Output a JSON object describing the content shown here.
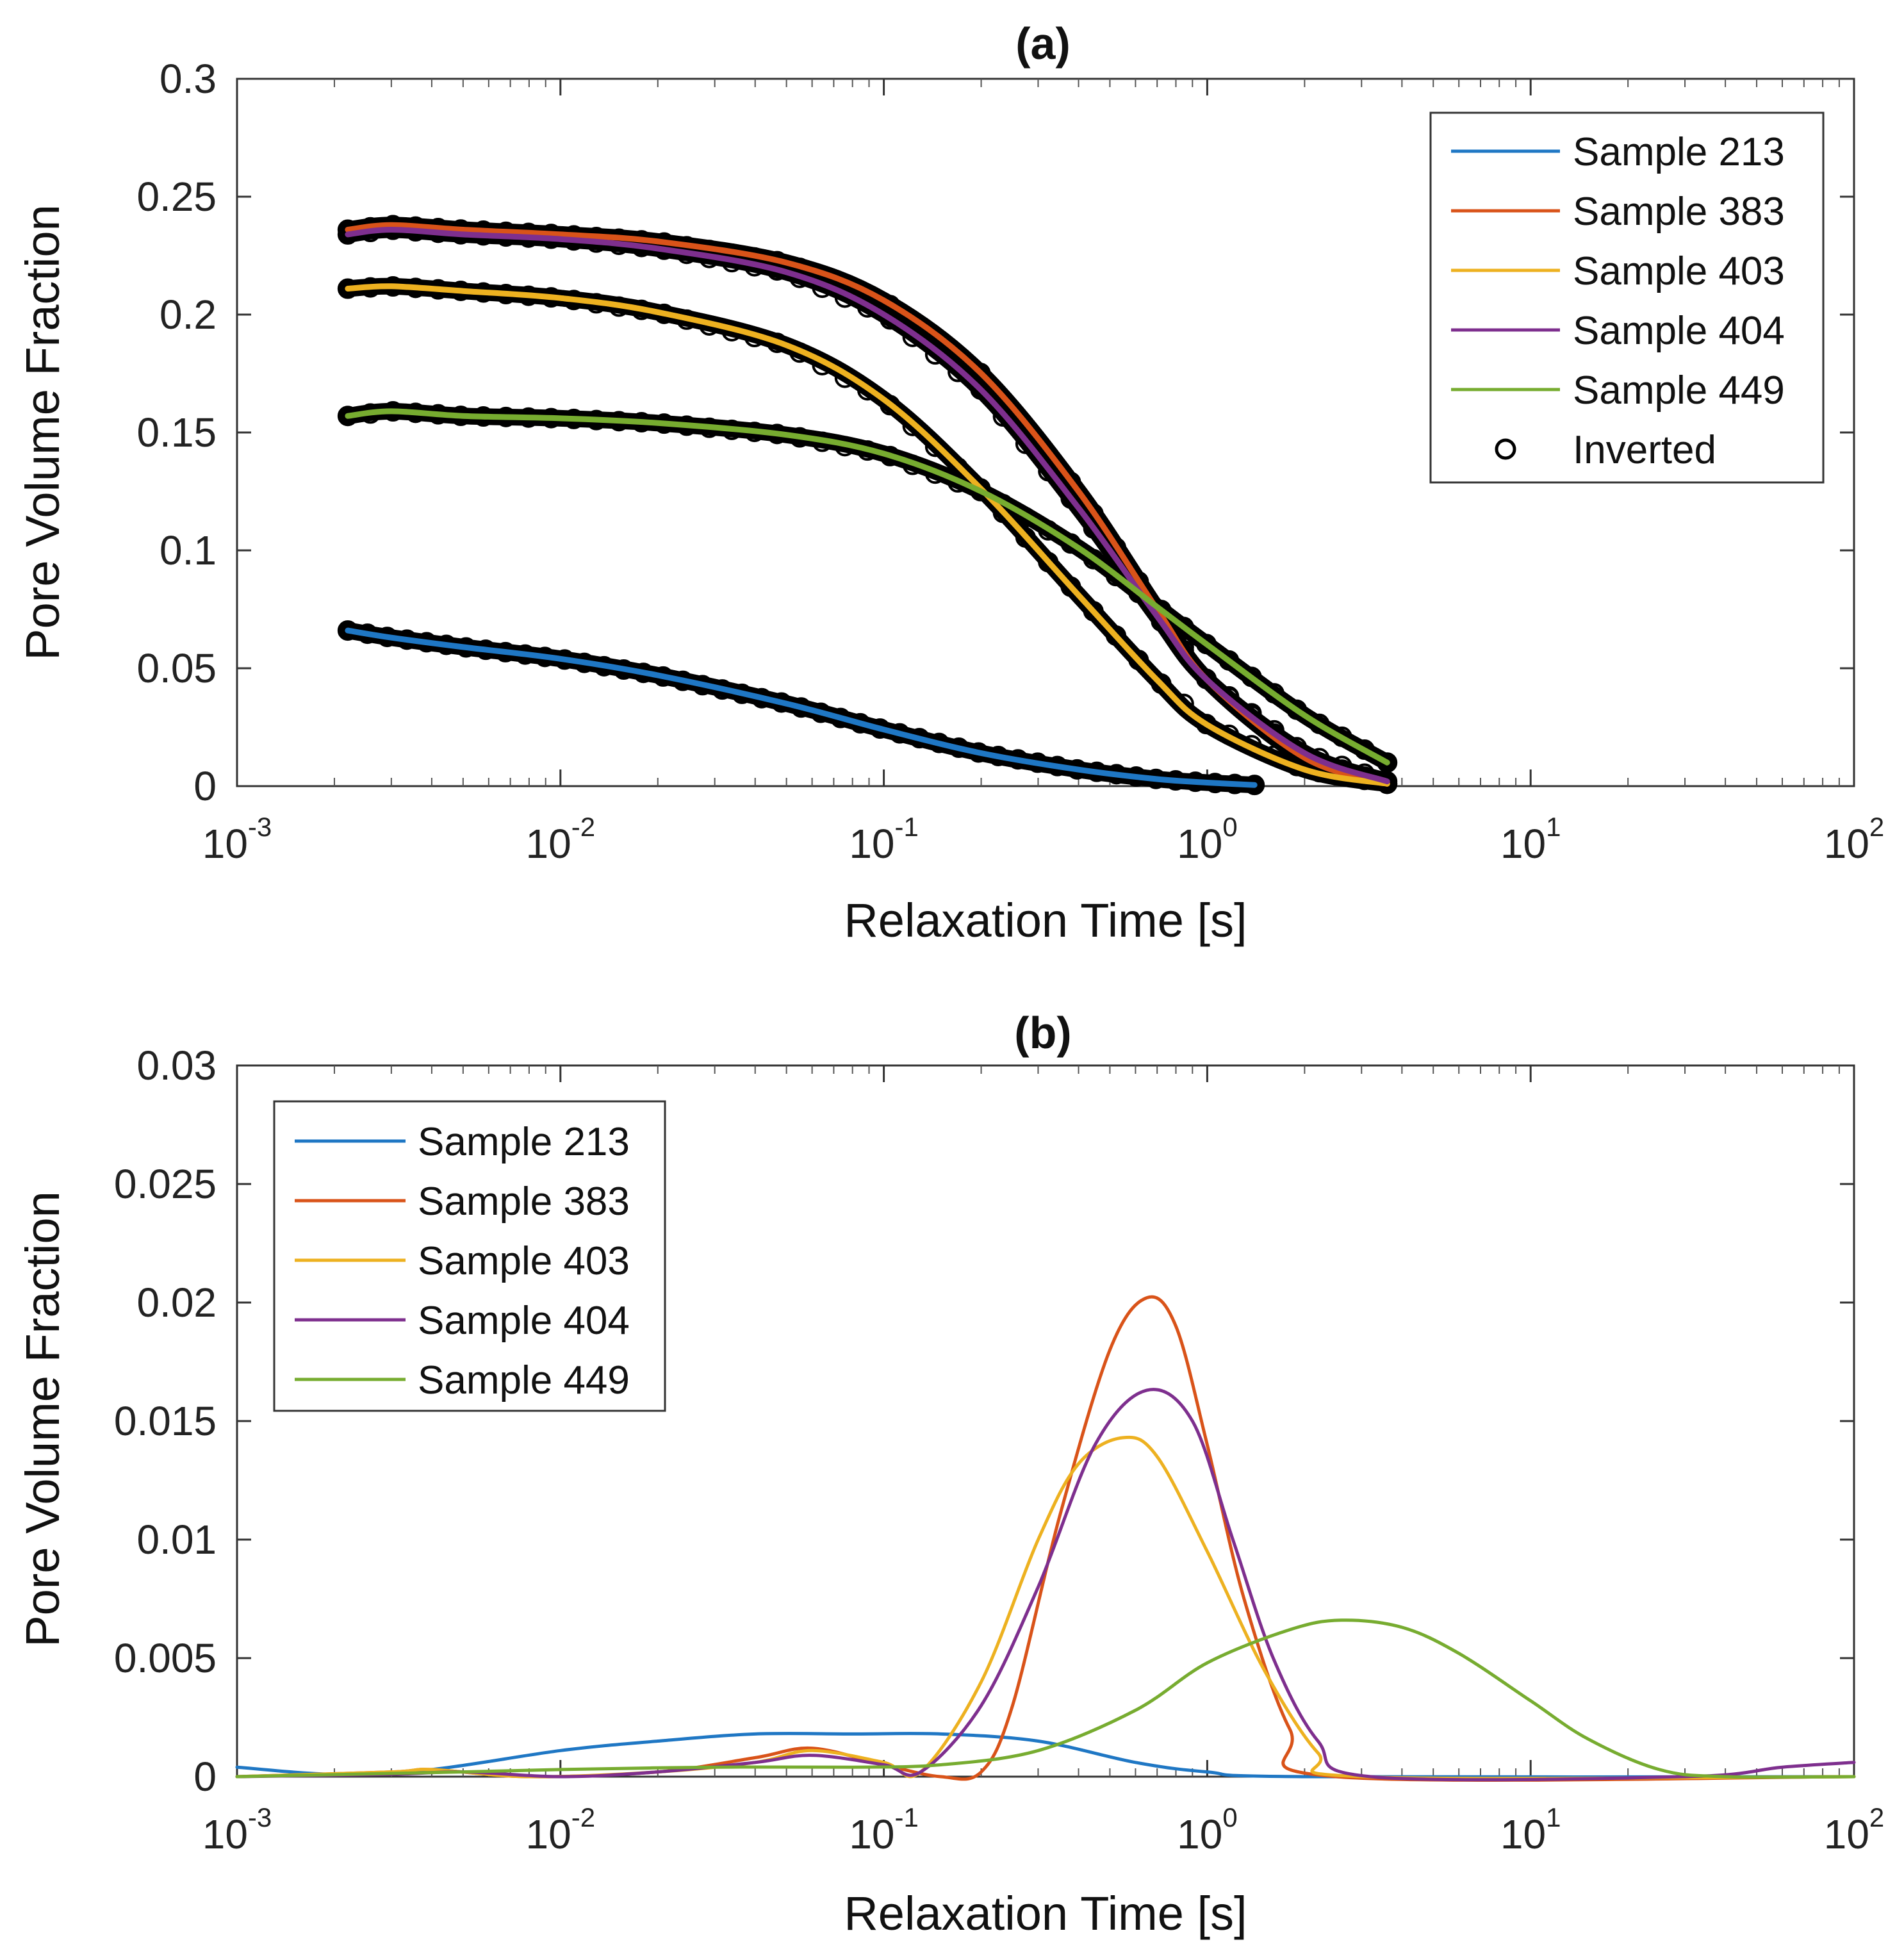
{
  "chart_data": [
    {
      "type": "line",
      "panel": "a",
      "title": "(a)",
      "xlabel": "Relaxation Time [s]",
      "ylabel": "Pore Volume Fraction",
      "xscale": "log",
      "xlim": [
        0.001,
        100
      ],
      "ylim": [
        0,
        0.3
      ],
      "xticks": [
        {
          "base": "10",
          "exp": "-3"
        },
        {
          "base": "10",
          "exp": "-2"
        },
        {
          "base": "10",
          "exp": "-1"
        },
        {
          "base": "10",
          "exp": "0"
        },
        {
          "base": "10",
          "exp": "1"
        },
        {
          "base": "10",
          "exp": "2"
        }
      ],
      "yticks": [
        "0",
        "0.05",
        "0.1",
        "0.15",
        "0.2",
        "0.25",
        "0.3"
      ],
      "legend_position": "top-right",
      "series": [
        {
          "name": "Sample 213",
          "color": "#1f77c4",
          "x": [
            0.0022,
            0.003,
            0.005,
            0.01,
            0.02,
            0.05,
            0.1,
            0.2,
            0.4,
            0.7,
            1.0,
            1.4
          ],
          "y": [
            0.066,
            0.063,
            0.059,
            0.054,
            0.047,
            0.035,
            0.024,
            0.014,
            0.007,
            0.003,
            0.0015,
            0.0005
          ]
        },
        {
          "name": "Sample 383",
          "color": "#d95319",
          "x": [
            0.0022,
            0.003,
            0.005,
            0.01,
            0.02,
            0.05,
            0.1,
            0.2,
            0.4,
            0.7,
            1.0,
            2.0,
            3.6
          ],
          "y": [
            0.236,
            0.238,
            0.236,
            0.234,
            0.231,
            0.222,
            0.206,
            0.175,
            0.125,
            0.075,
            0.045,
            0.012,
            0.001
          ]
        },
        {
          "name": "Sample 403",
          "color": "#edb120",
          "x": [
            0.0022,
            0.003,
            0.005,
            0.01,
            0.02,
            0.05,
            0.1,
            0.2,
            0.4,
            0.7,
            1.0,
            2.0,
            3.6
          ],
          "y": [
            0.211,
            0.212,
            0.21,
            0.207,
            0.201,
            0.187,
            0.164,
            0.126,
            0.081,
            0.045,
            0.026,
            0.007,
            0.001
          ]
        },
        {
          "name": "Sample 404",
          "color": "#7e2f8e",
          "x": [
            0.0022,
            0.003,
            0.005,
            0.01,
            0.02,
            0.05,
            0.1,
            0.2,
            0.4,
            0.7,
            1.0,
            2.0,
            3.6
          ],
          "y": [
            0.234,
            0.236,
            0.234,
            0.232,
            0.228,
            0.218,
            0.2,
            0.168,
            0.118,
            0.072,
            0.045,
            0.014,
            0.002
          ]
        },
        {
          "name": "Sample 449",
          "color": "#77ac30",
          "x": [
            0.0022,
            0.003,
            0.005,
            0.01,
            0.02,
            0.05,
            0.1,
            0.2,
            0.4,
            0.7,
            1.0,
            2.0,
            3.6
          ],
          "y": [
            0.157,
            0.159,
            0.157,
            0.156,
            0.154,
            0.149,
            0.141,
            0.125,
            0.101,
            0.076,
            0.06,
            0.03,
            0.01
          ]
        }
      ],
      "marker_series": {
        "name": "Inverted",
        "marker": "circle",
        "color": "#000000"
      }
    },
    {
      "type": "line",
      "panel": "b",
      "title": "(b)",
      "xlabel": "Relaxation Time [s]",
      "ylabel": "Pore Volume Fraction",
      "xscale": "log",
      "xlim": [
        0.001,
        100
      ],
      "ylim": [
        0,
        0.03
      ],
      "xticks": [
        {
          "base": "10",
          "exp": "-3"
        },
        {
          "base": "10",
          "exp": "-2"
        },
        {
          "base": "10",
          "exp": "-1"
        },
        {
          "base": "10",
          "exp": "0"
        },
        {
          "base": "10",
          "exp": "1"
        },
        {
          "base": "10",
          "exp": "2"
        }
      ],
      "yticks": [
        "0",
        "0.005",
        "0.01",
        "0.015",
        "0.02",
        "0.025",
        "0.03"
      ],
      "legend_position": "top-left",
      "series": [
        {
          "name": "Sample 213",
          "color": "#1f77c4",
          "x": [
            0.001,
            0.002,
            0.004,
            0.01,
            0.02,
            0.04,
            0.08,
            0.15,
            0.3,
            0.6,
            1.0,
            2.0,
            100
          ],
          "y": [
            0.0004,
            0.0001,
            0.0003,
            0.0011,
            0.0015,
            0.0018,
            0.0018,
            0.0018,
            0.0015,
            0.0006,
            0.0002,
            0.0,
            0.0
          ]
        },
        {
          "name": "Sample 383",
          "color": "#d95319",
          "x": [
            0.001,
            0.003,
            0.004,
            0.008,
            0.02,
            0.04,
            0.06,
            0.1,
            0.15,
            0.2,
            0.25,
            0.35,
            0.5,
            0.65,
            0.8,
            1.0,
            1.3,
            1.8,
            2.5,
            100
          ],
          "y": [
            0.0,
            0.0002,
            0.0003,
            0.0,
            0.0002,
            0.0008,
            0.0012,
            0.0005,
            0.0,
            0.0002,
            0.003,
            0.011,
            0.018,
            0.0202,
            0.019,
            0.014,
            0.0075,
            0.002,
            0.0,
            0.0
          ]
        },
        {
          "name": "Sample 403",
          "color": "#edb120",
          "x": [
            0.001,
            0.003,
            0.004,
            0.008,
            0.02,
            0.04,
            0.06,
            0.1,
            0.13,
            0.2,
            0.3,
            0.4,
            0.55,
            0.7,
            1.0,
            1.5,
            2.2,
            3.0,
            100
          ],
          "y": [
            0.0,
            0.0002,
            0.0003,
            0.0,
            0.0002,
            0.0006,
            0.0011,
            0.0006,
            0.0002,
            0.004,
            0.01,
            0.0132,
            0.0143,
            0.0135,
            0.0095,
            0.0045,
            0.001,
            0.0,
            0.0
          ]
        },
        {
          "name": "Sample 404",
          "color": "#7e2f8e",
          "x": [
            0.001,
            0.003,
            0.005,
            0.01,
            0.02,
            0.04,
            0.06,
            0.1,
            0.13,
            0.2,
            0.3,
            0.45,
            0.65,
            0.9,
            1.2,
            1.6,
            2.2,
            3.2,
            30,
            60,
            100
          ],
          "y": [
            0.0,
            0.0001,
            0.0002,
            0.0,
            0.0002,
            0.0006,
            0.0009,
            0.0005,
            0.0002,
            0.003,
            0.008,
            0.014,
            0.0163,
            0.015,
            0.01,
            0.005,
            0.0015,
            0.0,
            0.0,
            0.0004,
            0.0006
          ]
        },
        {
          "name": "Sample 449",
          "color": "#77ac30",
          "x": [
            0.001,
            0.005,
            0.01,
            0.03,
            0.08,
            0.15,
            0.3,
            0.6,
            1.0,
            1.8,
            2.6,
            4.0,
            6.0,
            10.0,
            15.0,
            25.0,
            40.0,
            100
          ],
          "y": [
            0.0,
            0.0002,
            0.0003,
            0.0004,
            0.0004,
            0.0005,
            0.0011,
            0.0028,
            0.0048,
            0.0062,
            0.0066,
            0.0063,
            0.0052,
            0.0032,
            0.0016,
            0.0003,
            0.0,
            0.0
          ]
        }
      ]
    }
  ]
}
